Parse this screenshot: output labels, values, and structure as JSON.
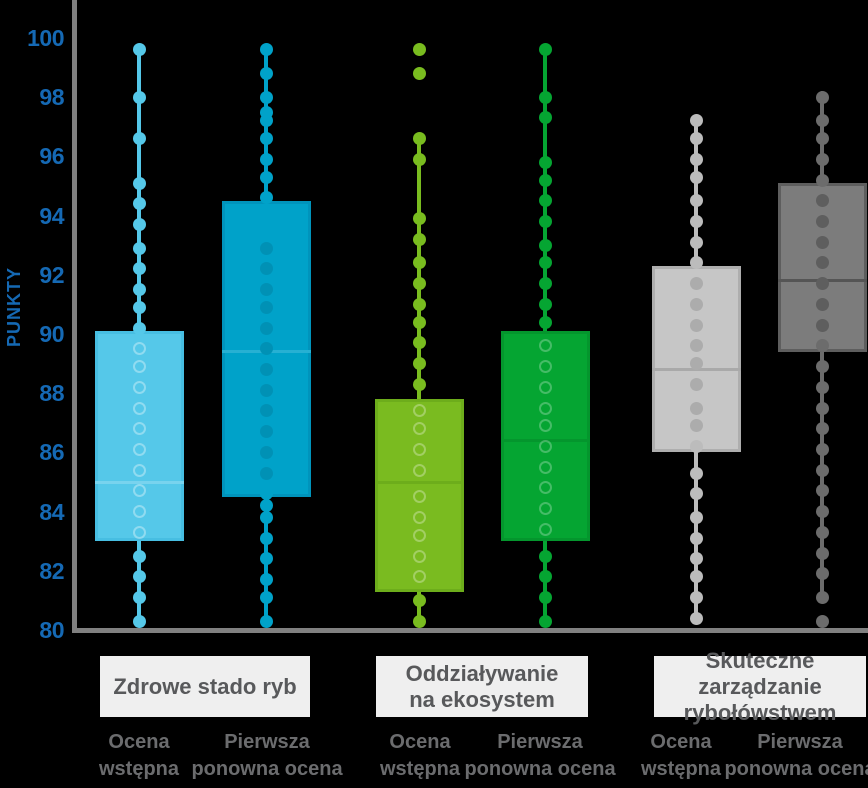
{
  "chart_data": {
    "type": "boxplot",
    "title": "",
    "ylabel": "PUNKTY",
    "ylim": [
      80,
      100
    ],
    "yticks": [
      80,
      82,
      84,
      86,
      88,
      90,
      92,
      94,
      96,
      98,
      100
    ],
    "grid": false,
    "legend_position": "none",
    "groups": [
      {
        "label": "Zdrowe stado ryb",
        "lines": [
          "Zdrowe stado ryb"
        ]
      },
      {
        "label": "Oddziaływanie na ekosystem",
        "lines": [
          "Oddziaływanie",
          "na ekosystem"
        ]
      },
      {
        "label": "Skuteczne zarządzanie rybołówstwem",
        "lines": [
          "Skuteczne zarządzanie",
          "rybołówstwem"
        ]
      }
    ],
    "series": [
      {
        "group": "Zdrowe stado ryb",
        "name": "Ocena wstępna",
        "name_lines": [
          "Ocena",
          "wstępna"
        ],
        "stats": {
          "whisker_low": 80.3,
          "q1": 83.0,
          "median": 85.0,
          "q3": 90.1,
          "whisker_high": 99.8
        },
        "points": [
          99.6,
          98.0,
          96.6,
          95.1,
          94.4,
          93.7,
          92.9,
          92.2,
          91.5,
          90.9,
          90.2,
          89.5,
          88.9,
          88.2,
          87.5,
          86.8,
          86.1,
          85.4,
          84.7,
          84.0,
          83.3,
          82.5,
          81.8,
          81.1,
          80.3
        ],
        "outliers": [],
        "style": {
          "color": "#55C8E9",
          "box_fill": "#55C8E9",
          "box_border": "#47BEE2",
          "median": "#78D3EE",
          "inner_dot_type": "ring",
          "inner_dot_color": "rgba(255,255,255,0.35)"
        }
      },
      {
        "group": "Zdrowe stado ryb",
        "name": "Pierwsza ponowna ocena",
        "name_lines": [
          "Pierwsza",
          "ponowna ocena"
        ],
        "stats": {
          "whisker_low": 80.3,
          "q1": 84.5,
          "median": 89.4,
          "q3": 94.5,
          "whisker_high": 99.8
        },
        "points": [
          99.6,
          98.8,
          98.0,
          97.5,
          97.2,
          96.6,
          95.9,
          95.3,
          94.6,
          92.9,
          92.2,
          91.5,
          90.9,
          90.2,
          89.5,
          88.8,
          88.1,
          87.4,
          86.7,
          86.0,
          85.3,
          84.6,
          84.2,
          83.8,
          83.1,
          82.4,
          81.7,
          81.1,
          80.3
        ],
        "outliers": [],
        "style": {
          "color": "#00A2C9",
          "box_fill": "#00A2C9",
          "box_border": "#0094BC",
          "median": "#26B0D3",
          "inner_dot_type": "solid",
          "inner_dot_color": "#0091B5"
        }
      },
      {
        "group": "Oddziaływanie na ekosystem",
        "name": "Ocena wstępna",
        "name_lines": [
          "Ocena",
          "wstępna"
        ],
        "stats": {
          "whisker_low": 80.3,
          "q1": 81.3,
          "median": 85.0,
          "q3": 87.8,
          "whisker_high": 96.8
        },
        "points": [
          96.6,
          95.9,
          93.9,
          93.2,
          92.4,
          91.7,
          91.0,
          90.4,
          89.7,
          89.0,
          88.3,
          87.4,
          86.8,
          86.1,
          85.4,
          84.5,
          83.8,
          83.2,
          82.5,
          81.8,
          81.0,
          80.3
        ],
        "outliers": [
          99.6,
          98.8
        ],
        "style": {
          "color": "#79BC1F",
          "box_fill": "#7ABB20",
          "box_border": "#6DAD1B",
          "median": "#6DAD1B",
          "inner_dot_type": "ring",
          "inner_dot_color": "rgba(255,255,255,0.30)"
        }
      },
      {
        "group": "Oddziaływanie na ekosystem",
        "name": "Pierwsza ponowna ocena",
        "name_lines": [
          "Pierwsza",
          "ponowna ocena"
        ],
        "stats": {
          "whisker_low": 80.3,
          "q1": 83.0,
          "median": 86.4,
          "q3": 90.1,
          "whisker_high": 99.8
        },
        "points": [
          99.6,
          98.0,
          97.3,
          95.8,
          95.2,
          94.5,
          93.8,
          93.0,
          92.4,
          91.7,
          91.0,
          90.4,
          89.6,
          88.9,
          88.2,
          87.5,
          86.9,
          86.2,
          85.5,
          84.8,
          84.1,
          83.4,
          82.5,
          81.8,
          81.1,
          80.3
        ],
        "outliers": [],
        "style": {
          "color": "#05A532",
          "box_fill": "#05A532",
          "box_border": "#04962D",
          "median": "#04962D",
          "inner_dot_type": "ring",
          "inner_dot_color": "rgba(255,255,255,0.26)"
        }
      },
      {
        "group": "Skuteczne zarządzanie rybołówstwem",
        "name": "Ocena wstępna",
        "name_lines": [
          "Ocena",
          "wstępna"
        ],
        "stats": {
          "whisker_low": 80.4,
          "q1": 86.0,
          "median": 88.8,
          "q3": 92.3,
          "whisker_high": 97.4
        },
        "points": [
          97.2,
          96.6,
          95.9,
          95.3,
          94.5,
          93.8,
          93.1,
          92.4,
          91.7,
          91.0,
          90.3,
          89.6,
          89.0,
          88.3,
          87.5,
          86.9,
          86.2,
          85.3,
          84.6,
          83.8,
          83.1,
          82.4,
          81.8,
          81.1,
          80.4
        ],
        "outliers": [],
        "style": {
          "color": "#BCBCBC",
          "box_fill": "#C6C6C6",
          "box_border": "#AEAEAE",
          "median": "#A9A9A9",
          "inner_dot_type": "solid",
          "inner_dot_color": "#ACACAC"
        }
      },
      {
        "group": "Skuteczne zarządzanie rybołówstwem",
        "name": "Pierwsza ponowna ocena",
        "name_lines": [
          "Pierwsza",
          "ponowna ocena"
        ],
        "stats": {
          "whisker_low": 81.0,
          "q1": 89.4,
          "median": 91.8,
          "q3": 95.1,
          "whisker_high": 98.2
        },
        "points": [
          98.0,
          97.2,
          96.6,
          95.9,
          95.2,
          94.5,
          93.8,
          93.1,
          92.4,
          91.7,
          91.0,
          90.3,
          89.6,
          88.9,
          88.2,
          87.5,
          86.8,
          86.1,
          85.4,
          84.7,
          84.0,
          83.3,
          82.6,
          81.9,
          81.1
        ],
        "outliers": [
          80.3
        ],
        "style": {
          "color": "#6C6C6C",
          "box_fill": "#7C7C7C",
          "box_border": "#5E5E5E",
          "median": "#555555",
          "inner_dot_type": "solid",
          "inner_dot_color": "#5E5E5E"
        }
      }
    ]
  },
  "colors": {
    "background": "#000000",
    "axis_line": "#808080",
    "tick_text": "#1569B4",
    "y_title_text": "#1569B4",
    "group_label_bg": "#EFEFEF",
    "group_label_text": "#58595B",
    "series_label_text": "#6B6C6E"
  }
}
